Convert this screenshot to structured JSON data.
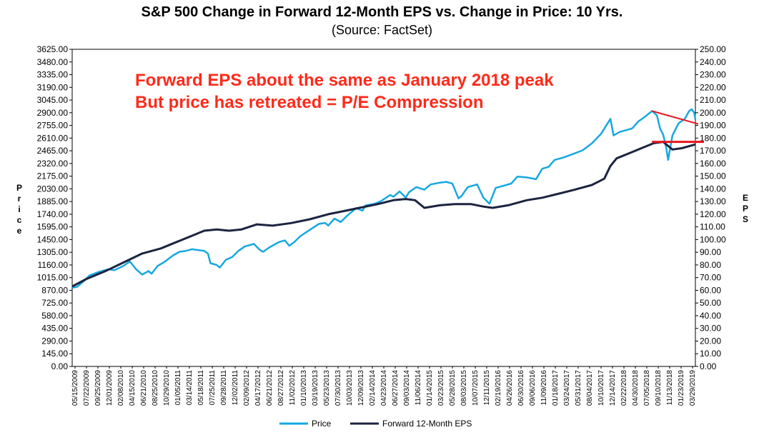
{
  "chart_data": {
    "type": "line",
    "title": "S&P 500 Change in Forward 12-Month EPS vs. Change in Price: 10 Yrs.",
    "subtitle": "(Source: FactSet)",
    "ylabel_left": "Price",
    "ylabel_right": "EPS",
    "ylim_left": [
      0,
      3625
    ],
    "ylim_right": [
      0,
      250
    ],
    "y_ticks_left": [
      "0.00",
      "145.00",
      "290.00",
      "435.00",
      "580.00",
      "725.00",
      "870.00",
      "1015.00",
      "1160.00",
      "1305.00",
      "1450.00",
      "1595.00",
      "1740.00",
      "1885.00",
      "2030.00",
      "2175.00",
      "2320.00",
      "2465.00",
      "2610.00",
      "2755.00",
      "2900.00",
      "3045.00",
      "3190.00",
      "3335.00",
      "3480.00",
      "3625.00"
    ],
    "y_ticks_right": [
      "0.00",
      "10.00",
      "20.00",
      "30.00",
      "40.00",
      "50.00",
      "60.00",
      "70.00",
      "80.00",
      "90.00",
      "100.00",
      "110.00",
      "120.00",
      "130.00",
      "140.00",
      "150.00",
      "160.00",
      "170.00",
      "180.00",
      "190.00",
      "200.00",
      "210.00",
      "220.00",
      "230.00",
      "240.00",
      "250.00"
    ],
    "x_ticks": [
      "05/15/2009",
      "07/22/2009",
      "09/25/2009",
      "12/01/2009",
      "02/08/2010",
      "04/15/2010",
      "06/21/2010",
      "08/25/2010",
      "10/29/2010",
      "01/05/2011",
      "03/14/2011",
      "05/18/2011",
      "07/25/2011",
      "09/28/2011",
      "12/02/2011",
      "02/09/2012",
      "04/17/2012",
      "06/21/2012",
      "08/27/2012",
      "11/02/2012",
      "01/10/2013",
      "03/19/2013",
      "05/23/2013",
      "07/30/2013",
      "10/03/2013",
      "12/09/2013",
      "02/14/2014",
      "04/23/2014",
      "06/27/2014",
      "09/03/2014",
      "11/06/2014",
      "01/14/2015",
      "03/23/2015",
      "05/28/2015",
      "08/03/2015",
      "10/07/2015",
      "12/11/2015",
      "02/19/2016",
      "04/26/2016",
      "06/30/2016",
      "09/06/2016",
      "11/09/2016",
      "01/18/2017",
      "03/24/2017",
      "05/31/2017",
      "08/04/2017",
      "10/10/2017",
      "12/14/2017",
      "02/22/2018",
      "04/30/2018",
      "07/05/2018",
      "09/10/2018",
      "11/13/2018",
      "01/23/2019",
      "03/29/2019"
    ],
    "x_range": [
      2009.37,
      2019.42
    ],
    "series": [
      {
        "name": "Price",
        "color": "#17a8e0",
        "axis": "left",
        "points": [
          [
            2009.37,
            900
          ],
          [
            2009.45,
            910
          ],
          [
            2009.55,
            970
          ],
          [
            2009.65,
            1040
          ],
          [
            2009.8,
            1080
          ],
          [
            2009.95,
            1110
          ],
          [
            2010.05,
            1100
          ],
          [
            2010.2,
            1150
          ],
          [
            2010.3,
            1200
          ],
          [
            2010.4,
            1110
          ],
          [
            2010.5,
            1050
          ],
          [
            2010.6,
            1090
          ],
          [
            2010.65,
            1060
          ],
          [
            2010.75,
            1150
          ],
          [
            2010.85,
            1190
          ],
          [
            2011.0,
            1270
          ],
          [
            2011.1,
            1310
          ],
          [
            2011.2,
            1320
          ],
          [
            2011.3,
            1340
          ],
          [
            2011.4,
            1330
          ],
          [
            2011.5,
            1320
          ],
          [
            2011.56,
            1290
          ],
          [
            2011.6,
            1180
          ],
          [
            2011.7,
            1160
          ],
          [
            2011.75,
            1130
          ],
          [
            2011.85,
            1220
          ],
          [
            2011.95,
            1250
          ],
          [
            2012.05,
            1320
          ],
          [
            2012.15,
            1370
          ],
          [
            2012.3,
            1400
          ],
          [
            2012.4,
            1330
          ],
          [
            2012.45,
            1310
          ],
          [
            2012.55,
            1360
          ],
          [
            2012.7,
            1420
          ],
          [
            2012.8,
            1440
          ],
          [
            2012.87,
            1380
          ],
          [
            2012.95,
            1420
          ],
          [
            2013.05,
            1490
          ],
          [
            2013.2,
            1560
          ],
          [
            2013.35,
            1630
          ],
          [
            2013.45,
            1640
          ],
          [
            2013.5,
            1610
          ],
          [
            2013.6,
            1690
          ],
          [
            2013.7,
            1650
          ],
          [
            2013.8,
            1720
          ],
          [
            2013.95,
            1810
          ],
          [
            2014.05,
            1780
          ],
          [
            2014.1,
            1840
          ],
          [
            2014.25,
            1860
          ],
          [
            2014.35,
            1890
          ],
          [
            2014.5,
            1960
          ],
          [
            2014.55,
            1940
          ],
          [
            2014.65,
            2000
          ],
          [
            2014.75,
            1930
          ],
          [
            2014.8,
            1990
          ],
          [
            2014.92,
            2050
          ],
          [
            2015.05,
            2020
          ],
          [
            2015.15,
            2080
          ],
          [
            2015.3,
            2100
          ],
          [
            2015.4,
            2110
          ],
          [
            2015.5,
            2090
          ],
          [
            2015.6,
            1920
          ],
          [
            2015.65,
            1950
          ],
          [
            2015.75,
            2050
          ],
          [
            2015.9,
            2080
          ],
          [
            2016.0,
            1930
          ],
          [
            2016.1,
            1860
          ],
          [
            2016.2,
            2040
          ],
          [
            2016.35,
            2070
          ],
          [
            2016.45,
            2090
          ],
          [
            2016.55,
            2170
          ],
          [
            2016.7,
            2160
          ],
          [
            2016.85,
            2140
          ],
          [
            2016.95,
            2260
          ],
          [
            2017.05,
            2280
          ],
          [
            2017.15,
            2360
          ],
          [
            2017.3,
            2390
          ],
          [
            2017.45,
            2430
          ],
          [
            2017.6,
            2470
          ],
          [
            2017.75,
            2550
          ],
          [
            2017.9,
            2660
          ],
          [
            2018.05,
            2830
          ],
          [
            2018.1,
            2640
          ],
          [
            2018.2,
            2680
          ],
          [
            2018.3,
            2700
          ],
          [
            2018.4,
            2720
          ],
          [
            2018.5,
            2800
          ],
          [
            2018.6,
            2850
          ],
          [
            2018.72,
            2920
          ],
          [
            2018.8,
            2870
          ],
          [
            2018.85,
            2720
          ],
          [
            2018.9,
            2650
          ],
          [
            2018.95,
            2500
          ],
          [
            2018.98,
            2360
          ],
          [
            2019.05,
            2640
          ],
          [
            2019.15,
            2780
          ],
          [
            2019.25,
            2830
          ],
          [
            2019.32,
            2920
          ],
          [
            2019.36,
            2940
          ],
          [
            2019.4,
            2900
          ],
          [
            2019.42,
            2820
          ]
        ]
      },
      {
        "name": "Forward 12-Month EPS",
        "color": "#1c2440",
        "axis": "right",
        "points": [
          [
            2009.37,
            63
          ],
          [
            2009.6,
            69
          ],
          [
            2009.9,
            75
          ],
          [
            2010.2,
            82
          ],
          [
            2010.5,
            89
          ],
          [
            2010.8,
            93
          ],
          [
            2011.0,
            97
          ],
          [
            2011.3,
            103
          ],
          [
            2011.5,
            107
          ],
          [
            2011.7,
            108
          ],
          [
            2011.9,
            107
          ],
          [
            2012.1,
            108
          ],
          [
            2012.35,
            112
          ],
          [
            2012.6,
            111
          ],
          [
            2012.9,
            113
          ],
          [
            2013.2,
            116
          ],
          [
            2013.5,
            120
          ],
          [
            2013.8,
            123
          ],
          [
            2014.0,
            125
          ],
          [
            2014.3,
            128
          ],
          [
            2014.55,
            131
          ],
          [
            2014.75,
            132
          ],
          [
            2014.9,
            131
          ],
          [
            2015.05,
            125
          ],
          [
            2015.3,
            127
          ],
          [
            2015.55,
            128
          ],
          [
            2015.8,
            128
          ],
          [
            2016.0,
            126
          ],
          [
            2016.15,
            125
          ],
          [
            2016.4,
            127
          ],
          [
            2016.7,
            131
          ],
          [
            2016.95,
            133
          ],
          [
            2017.2,
            136
          ],
          [
            2017.45,
            139
          ],
          [
            2017.75,
            143
          ],
          [
            2017.95,
            148
          ],
          [
            2018.05,
            158
          ],
          [
            2018.15,
            164
          ],
          [
            2018.35,
            168
          ],
          [
            2018.55,
            172
          ],
          [
            2018.75,
            176
          ],
          [
            2018.9,
            177
          ],
          [
            2019.05,
            171
          ],
          [
            2019.2,
            172
          ],
          [
            2019.42,
            175
          ]
        ]
      }
    ],
    "annotations": [
      "Forward EPS about the same as January 2018 peak",
      "But price has retreated = P/E Compression"
    ],
    "legend": [
      "Price",
      "Forward 12-Month EPS"
    ],
    "legend_position": "bottom-center",
    "grid": false
  }
}
